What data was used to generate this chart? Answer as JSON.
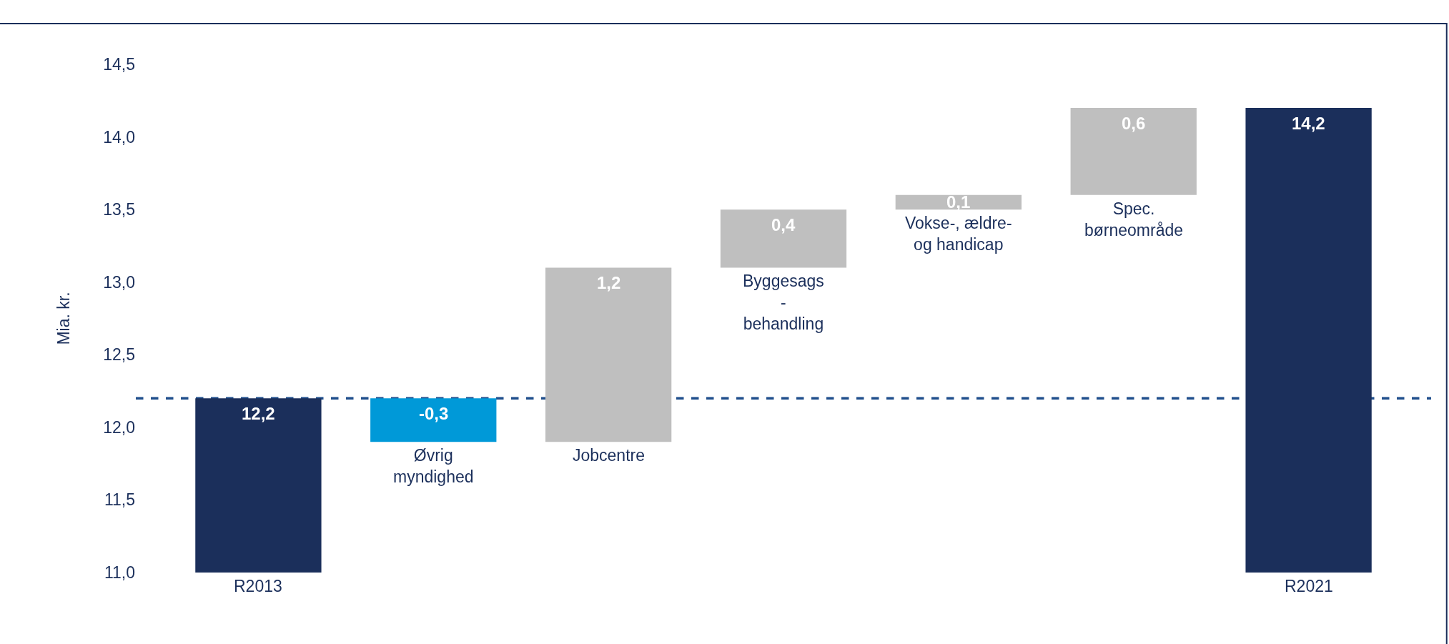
{
  "chart_data": {
    "type": "bar",
    "ylabel": "Mia. kr.",
    "categories": [
      "R2013",
      "Øvrig\nmyndighed",
      "Jobcentre",
      "Byggesags\n-\nbehandling",
      "Vokse-, ældre-\nog handicap",
      "Spec.\nbørneområde",
      "R2021"
    ],
    "values": [
      12.2,
      -0.3,
      1.2,
      0.4,
      0.1,
      0.6,
      14.2
    ],
    "base": [
      0,
      12.2,
      11.9,
      13.1,
      13.5,
      13.6,
      0
    ],
    "colors": [
      "#1b2f5b",
      "#0099d8",
      "#bfbfbf",
      "#bfbfbf",
      "#bfbfbf",
      "#bfbfbf",
      "#1b2f5b"
    ],
    "value_labels": [
      "12,2",
      "-0,3",
      "1,2",
      "0,4",
      "0,1",
      "0,6",
      "14,2"
    ],
    "ylim": [
      11.0,
      14.5
    ],
    "yticks": [
      {
        "value": 11.0,
        "label": "11,0"
      },
      {
        "value": 11.5,
        "label": "11,5"
      },
      {
        "value": 12.0,
        "label": "12,0"
      },
      {
        "value": 12.5,
        "label": "12,5"
      },
      {
        "value": 13.0,
        "label": "13,0"
      },
      {
        "value": 13.5,
        "label": "13,5"
      },
      {
        "value": 14.0,
        "label": "14,0"
      },
      {
        "value": 14.5,
        "label": "14,5"
      }
    ],
    "ref_lines": [
      {
        "axis": "y",
        "value": 12.2,
        "color": "#1f4e8c",
        "line_style": "dashed"
      }
    ],
    "tick_labels": "y",
    "grid": false,
    "legend": false
  }
}
